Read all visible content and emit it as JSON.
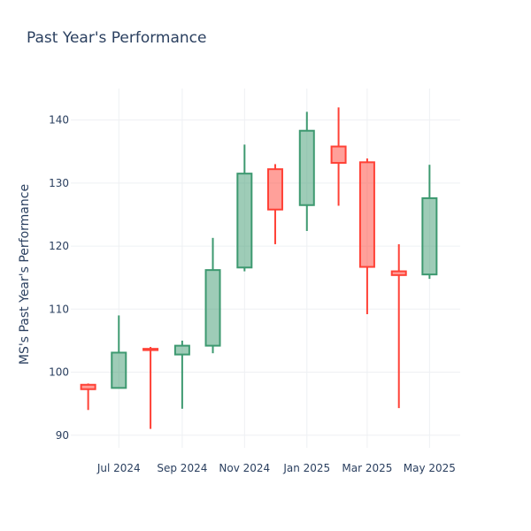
{
  "chart_data": {
    "type": "candlestick",
    "title": "Past Year's Performance",
    "xlabel": "",
    "ylabel": "MS's Past Year's Performance",
    "ylim": [
      88,
      145
    ],
    "y_ticks": [
      90,
      100,
      110,
      120,
      130,
      140
    ],
    "x_range": [
      "2024-05-15",
      "2025-05-31"
    ],
    "x_ticks": [
      {
        "date": "2024-07-01",
        "label": "Jul 2024"
      },
      {
        "date": "2024-09-01",
        "label": "Sep 2024"
      },
      {
        "date": "2024-11-01",
        "label": "Nov 2024"
      },
      {
        "date": "2025-01-01",
        "label": "Jan 2025"
      },
      {
        "date": "2025-03-01",
        "label": "Mar 2025"
      },
      {
        "date": "2025-05-01",
        "label": "May 2025"
      }
    ],
    "grid": true,
    "legend": false,
    "colors": {
      "increasing_line": "#3d9970",
      "increasing_fill": "rgba(61,153,112,0.5)",
      "decreasing_line": "#ff4136",
      "decreasing_fill": "rgba(255,65,54,0.5)"
    },
    "candles": [
      {
        "date": "2024-06-01",
        "open": 98.0,
        "high": 98.2,
        "low": 94.0,
        "close": 97.3
      },
      {
        "date": "2024-07-01",
        "open": 97.5,
        "high": 109.0,
        "low": 97.5,
        "close": 103.1
      },
      {
        "date": "2024-08-01",
        "open": 103.7,
        "high": 104.0,
        "low": 91.0,
        "close": 103.5
      },
      {
        "date": "2024-09-01",
        "open": 102.8,
        "high": 105.0,
        "low": 94.2,
        "close": 104.2
      },
      {
        "date": "2024-10-01",
        "open": 104.2,
        "high": 121.3,
        "low": 103.0,
        "close": 116.2
      },
      {
        "date": "2024-11-01",
        "open": 116.6,
        "high": 136.1,
        "low": 116.0,
        "close": 131.5
      },
      {
        "date": "2024-12-01",
        "open": 132.2,
        "high": 133.0,
        "low": 120.3,
        "close": 125.8
      },
      {
        "date": "2025-01-01",
        "open": 126.5,
        "high": 141.3,
        "low": 122.4,
        "close": 138.3
      },
      {
        "date": "2025-02-01",
        "open": 135.8,
        "high": 142.0,
        "low": 126.4,
        "close": 133.2
      },
      {
        "date": "2025-03-01",
        "open": 133.3,
        "high": 133.9,
        "low": 109.2,
        "close": 116.7
      },
      {
        "date": "2025-04-01",
        "open": 116.0,
        "high": 120.3,
        "low": 94.3,
        "close": 115.4
      },
      {
        "date": "2025-05-01",
        "open": 115.5,
        "high": 132.9,
        "low": 114.8,
        "close": 127.6
      }
    ]
  }
}
